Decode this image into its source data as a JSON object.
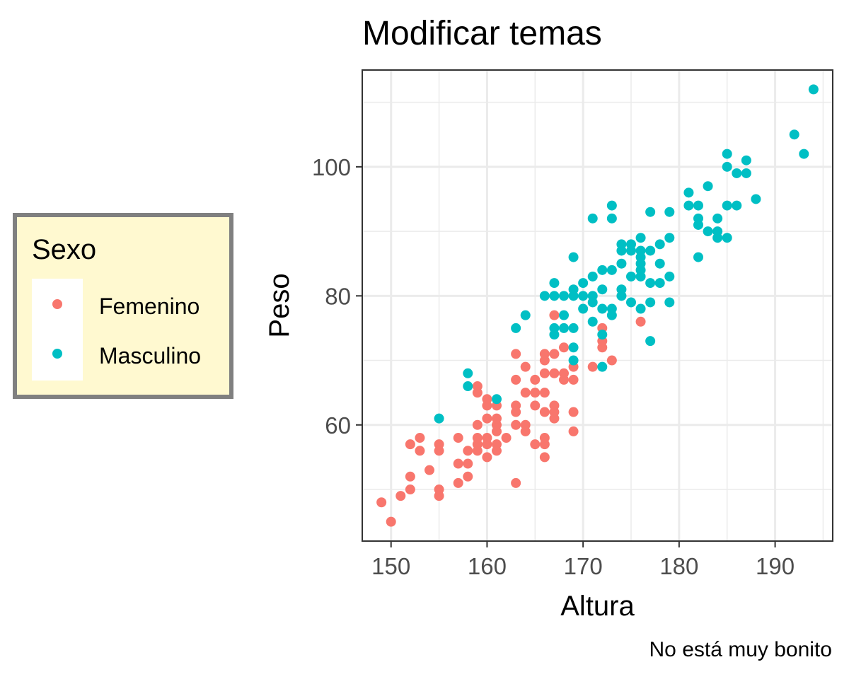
{
  "chart_data": {
    "type": "scatter",
    "title": "Modificar temas",
    "caption": "No está muy bonito",
    "xlabel": "Altura",
    "ylabel": "Peso",
    "xlim": [
      147,
      196
    ],
    "ylim": [
      42,
      115
    ],
    "xticks": [
      150,
      160,
      170,
      180,
      190
    ],
    "yticks": [
      60,
      80,
      100
    ],
    "grid": true,
    "legend": {
      "title": "Sexo",
      "placement": "left",
      "background": "#fff9d0",
      "border": "#808080"
    },
    "series": [
      {
        "name": "Femenino",
        "color": "#f8766d",
        "points": [
          [
            149,
            48
          ],
          [
            150,
            45
          ],
          [
            151,
            49
          ],
          [
            152,
            50
          ],
          [
            152,
            52
          ],
          [
            152,
            57
          ],
          [
            153,
            56
          ],
          [
            153,
            58
          ],
          [
            154,
            53
          ],
          [
            155,
            49
          ],
          [
            155,
            50
          ],
          [
            155,
            56
          ],
          [
            155,
            57
          ],
          [
            157,
            51
          ],
          [
            157,
            54
          ],
          [
            157,
            58
          ],
          [
            158,
            52
          ],
          [
            158,
            54
          ],
          [
            158,
            56
          ],
          [
            159,
            56
          ],
          [
            159,
            57
          ],
          [
            159,
            58
          ],
          [
            159,
            60
          ],
          [
            159,
            65
          ],
          [
            159,
            66
          ],
          [
            160,
            55
          ],
          [
            160,
            57
          ],
          [
            160,
            58
          ],
          [
            160,
            61
          ],
          [
            160,
            63
          ],
          [
            160,
            64
          ],
          [
            161,
            56
          ],
          [
            161,
            57
          ],
          [
            161,
            59
          ],
          [
            161,
            60
          ],
          [
            161,
            61
          ],
          [
            161,
            63
          ],
          [
            162,
            58
          ],
          [
            163,
            51
          ],
          [
            163,
            60
          ],
          [
            163,
            62
          ],
          [
            163,
            63
          ],
          [
            163,
            67
          ],
          [
            163,
            71
          ],
          [
            164,
            59
          ],
          [
            164,
            60
          ],
          [
            164,
            65
          ],
          [
            164,
            69
          ],
          [
            165,
            57
          ],
          [
            165,
            63
          ],
          [
            165,
            65
          ],
          [
            165,
            67
          ],
          [
            166,
            55
          ],
          [
            166,
            57
          ],
          [
            166,
            58
          ],
          [
            166,
            62
          ],
          [
            166,
            65
          ],
          [
            166,
            68
          ],
          [
            166,
            70
          ],
          [
            166,
            71
          ],
          [
            167,
            61
          ],
          [
            167,
            62
          ],
          [
            167,
            63
          ],
          [
            167,
            68
          ],
          [
            167,
            71
          ],
          [
            167,
            77
          ],
          [
            168,
            67
          ],
          [
            168,
            68
          ],
          [
            168,
            72
          ],
          [
            169,
            59
          ],
          [
            169,
            62
          ],
          [
            169,
            67
          ],
          [
            169,
            69
          ],
          [
            171,
            69
          ],
          [
            172,
            72
          ],
          [
            172,
            73
          ],
          [
            172,
            75
          ],
          [
            173,
            70
          ],
          [
            176,
            76
          ]
        ]
      },
      {
        "name": "Masculino",
        "color": "#00bfc4",
        "points": [
          [
            155,
            61
          ],
          [
            158,
            66
          ],
          [
            158,
            68
          ],
          [
            161,
            64
          ],
          [
            163,
            75
          ],
          [
            164,
            77
          ],
          [
            166,
            80
          ],
          [
            167,
            74
          ],
          [
            167,
            75
          ],
          [
            167,
            80
          ],
          [
            167,
            82
          ],
          [
            168,
            75
          ],
          [
            168,
            77
          ],
          [
            168,
            80
          ],
          [
            169,
            70
          ],
          [
            169,
            72
          ],
          [
            169,
            75
          ],
          [
            169,
            80
          ],
          [
            169,
            81
          ],
          [
            169,
            86
          ],
          [
            170,
            78
          ],
          [
            170,
            80
          ],
          [
            170,
            82
          ],
          [
            171,
            76
          ],
          [
            171,
            79
          ],
          [
            171,
            80
          ],
          [
            171,
            83
          ],
          [
            171,
            92
          ],
          [
            172,
            69
          ],
          [
            172,
            74
          ],
          [
            172,
            78
          ],
          [
            172,
            81
          ],
          [
            172,
            84
          ],
          [
            173,
            77
          ],
          [
            173,
            78
          ],
          [
            173,
            84
          ],
          [
            173,
            92
          ],
          [
            173,
            94
          ],
          [
            174,
            80
          ],
          [
            174,
            81
          ],
          [
            174,
            85
          ],
          [
            174,
            87
          ],
          [
            174,
            88
          ],
          [
            175,
            79
          ],
          [
            175,
            83
          ],
          [
            175,
            87
          ],
          [
            175,
            88
          ],
          [
            176,
            78
          ],
          [
            176,
            83
          ],
          [
            176,
            84
          ],
          [
            176,
            85
          ],
          [
            176,
            86
          ],
          [
            176,
            87
          ],
          [
            176,
            89
          ],
          [
            177,
            73
          ],
          [
            177,
            79
          ],
          [
            177,
            82
          ],
          [
            177,
            87
          ],
          [
            177,
            93
          ],
          [
            178,
            82
          ],
          [
            178,
            85
          ],
          [
            178,
            88
          ],
          [
            179,
            79
          ],
          [
            179,
            83
          ],
          [
            179,
            89
          ],
          [
            179,
            93
          ],
          [
            181,
            94
          ],
          [
            181,
            96
          ],
          [
            182,
            86
          ],
          [
            182,
            91
          ],
          [
            182,
            92
          ],
          [
            182,
            94
          ],
          [
            183,
            90
          ],
          [
            183,
            97
          ],
          [
            184,
            89
          ],
          [
            184,
            90
          ],
          [
            184,
            92
          ],
          [
            185,
            89
          ],
          [
            185,
            94
          ],
          [
            185,
            100
          ],
          [
            185,
            102
          ],
          [
            186,
            94
          ],
          [
            186,
            99
          ],
          [
            187,
            99
          ],
          [
            187,
            101
          ],
          [
            188,
            95
          ],
          [
            192,
            105
          ],
          [
            193,
            102
          ],
          [
            194,
            112
          ]
        ]
      }
    ]
  }
}
